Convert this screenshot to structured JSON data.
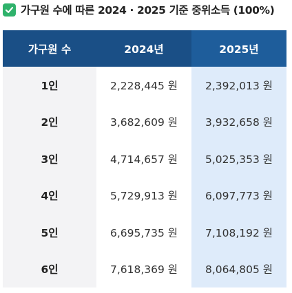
{
  "title": {
    "icon": "check-icon",
    "text": "가구원 수에 따른 2024 · 2025 기준 중위소득 (100%)"
  },
  "colors": {
    "header_bg": "#1a4f86",
    "header_text": "#ffffff",
    "label_bg": "#f3f3f5",
    "highlight_col_bg": "#deebfa",
    "check_green": "#2fb26b"
  },
  "table": {
    "headers": [
      "가구원 수",
      "2024년",
      "2025년"
    ],
    "rows": [
      {
        "label": "1인",
        "y2024": "2,228,445 원",
        "y2025": "2,392,013 원"
      },
      {
        "label": "2인",
        "y2024": "3,682,609 원",
        "y2025": "3,932,658 원"
      },
      {
        "label": "3인",
        "y2024": "4,714,657 원",
        "y2025": "5,025,353 원"
      },
      {
        "label": "4인",
        "y2024": "5,729,913 원",
        "y2025": "6,097,773 원"
      },
      {
        "label": "5인",
        "y2024": "6,695,735 원",
        "y2025": "7,108,192 원"
      },
      {
        "label": "6인",
        "y2024": "7,618,369 원",
        "y2025": "8,064,805 원"
      }
    ]
  }
}
